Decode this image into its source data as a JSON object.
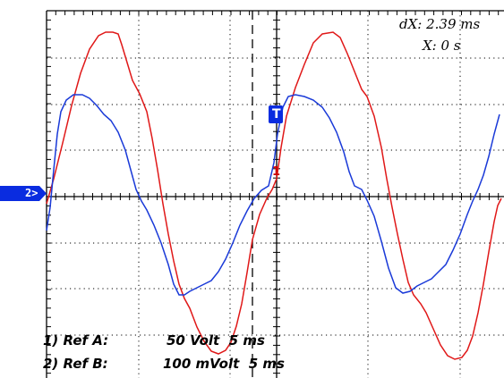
{
  "readouts": {
    "dx": "dX: 2.39 ms",
    "x": "X: 0 s"
  },
  "markers": {
    "channel_2": "2>",
    "trigger": "T",
    "ref": "1"
  },
  "legend": {
    "ref_a": "1) Ref A:",
    "ref_a_scale": "50 Volt  5 ms",
    "ref_b": "2) Ref B:",
    "ref_b_scale": "100 mVolt  5 ms"
  },
  "colors": {
    "trace_a": "#e01818",
    "trace_b": "#1a3ad8",
    "grid": "#000000",
    "marker_bg": "#0a2ce0"
  }
}
